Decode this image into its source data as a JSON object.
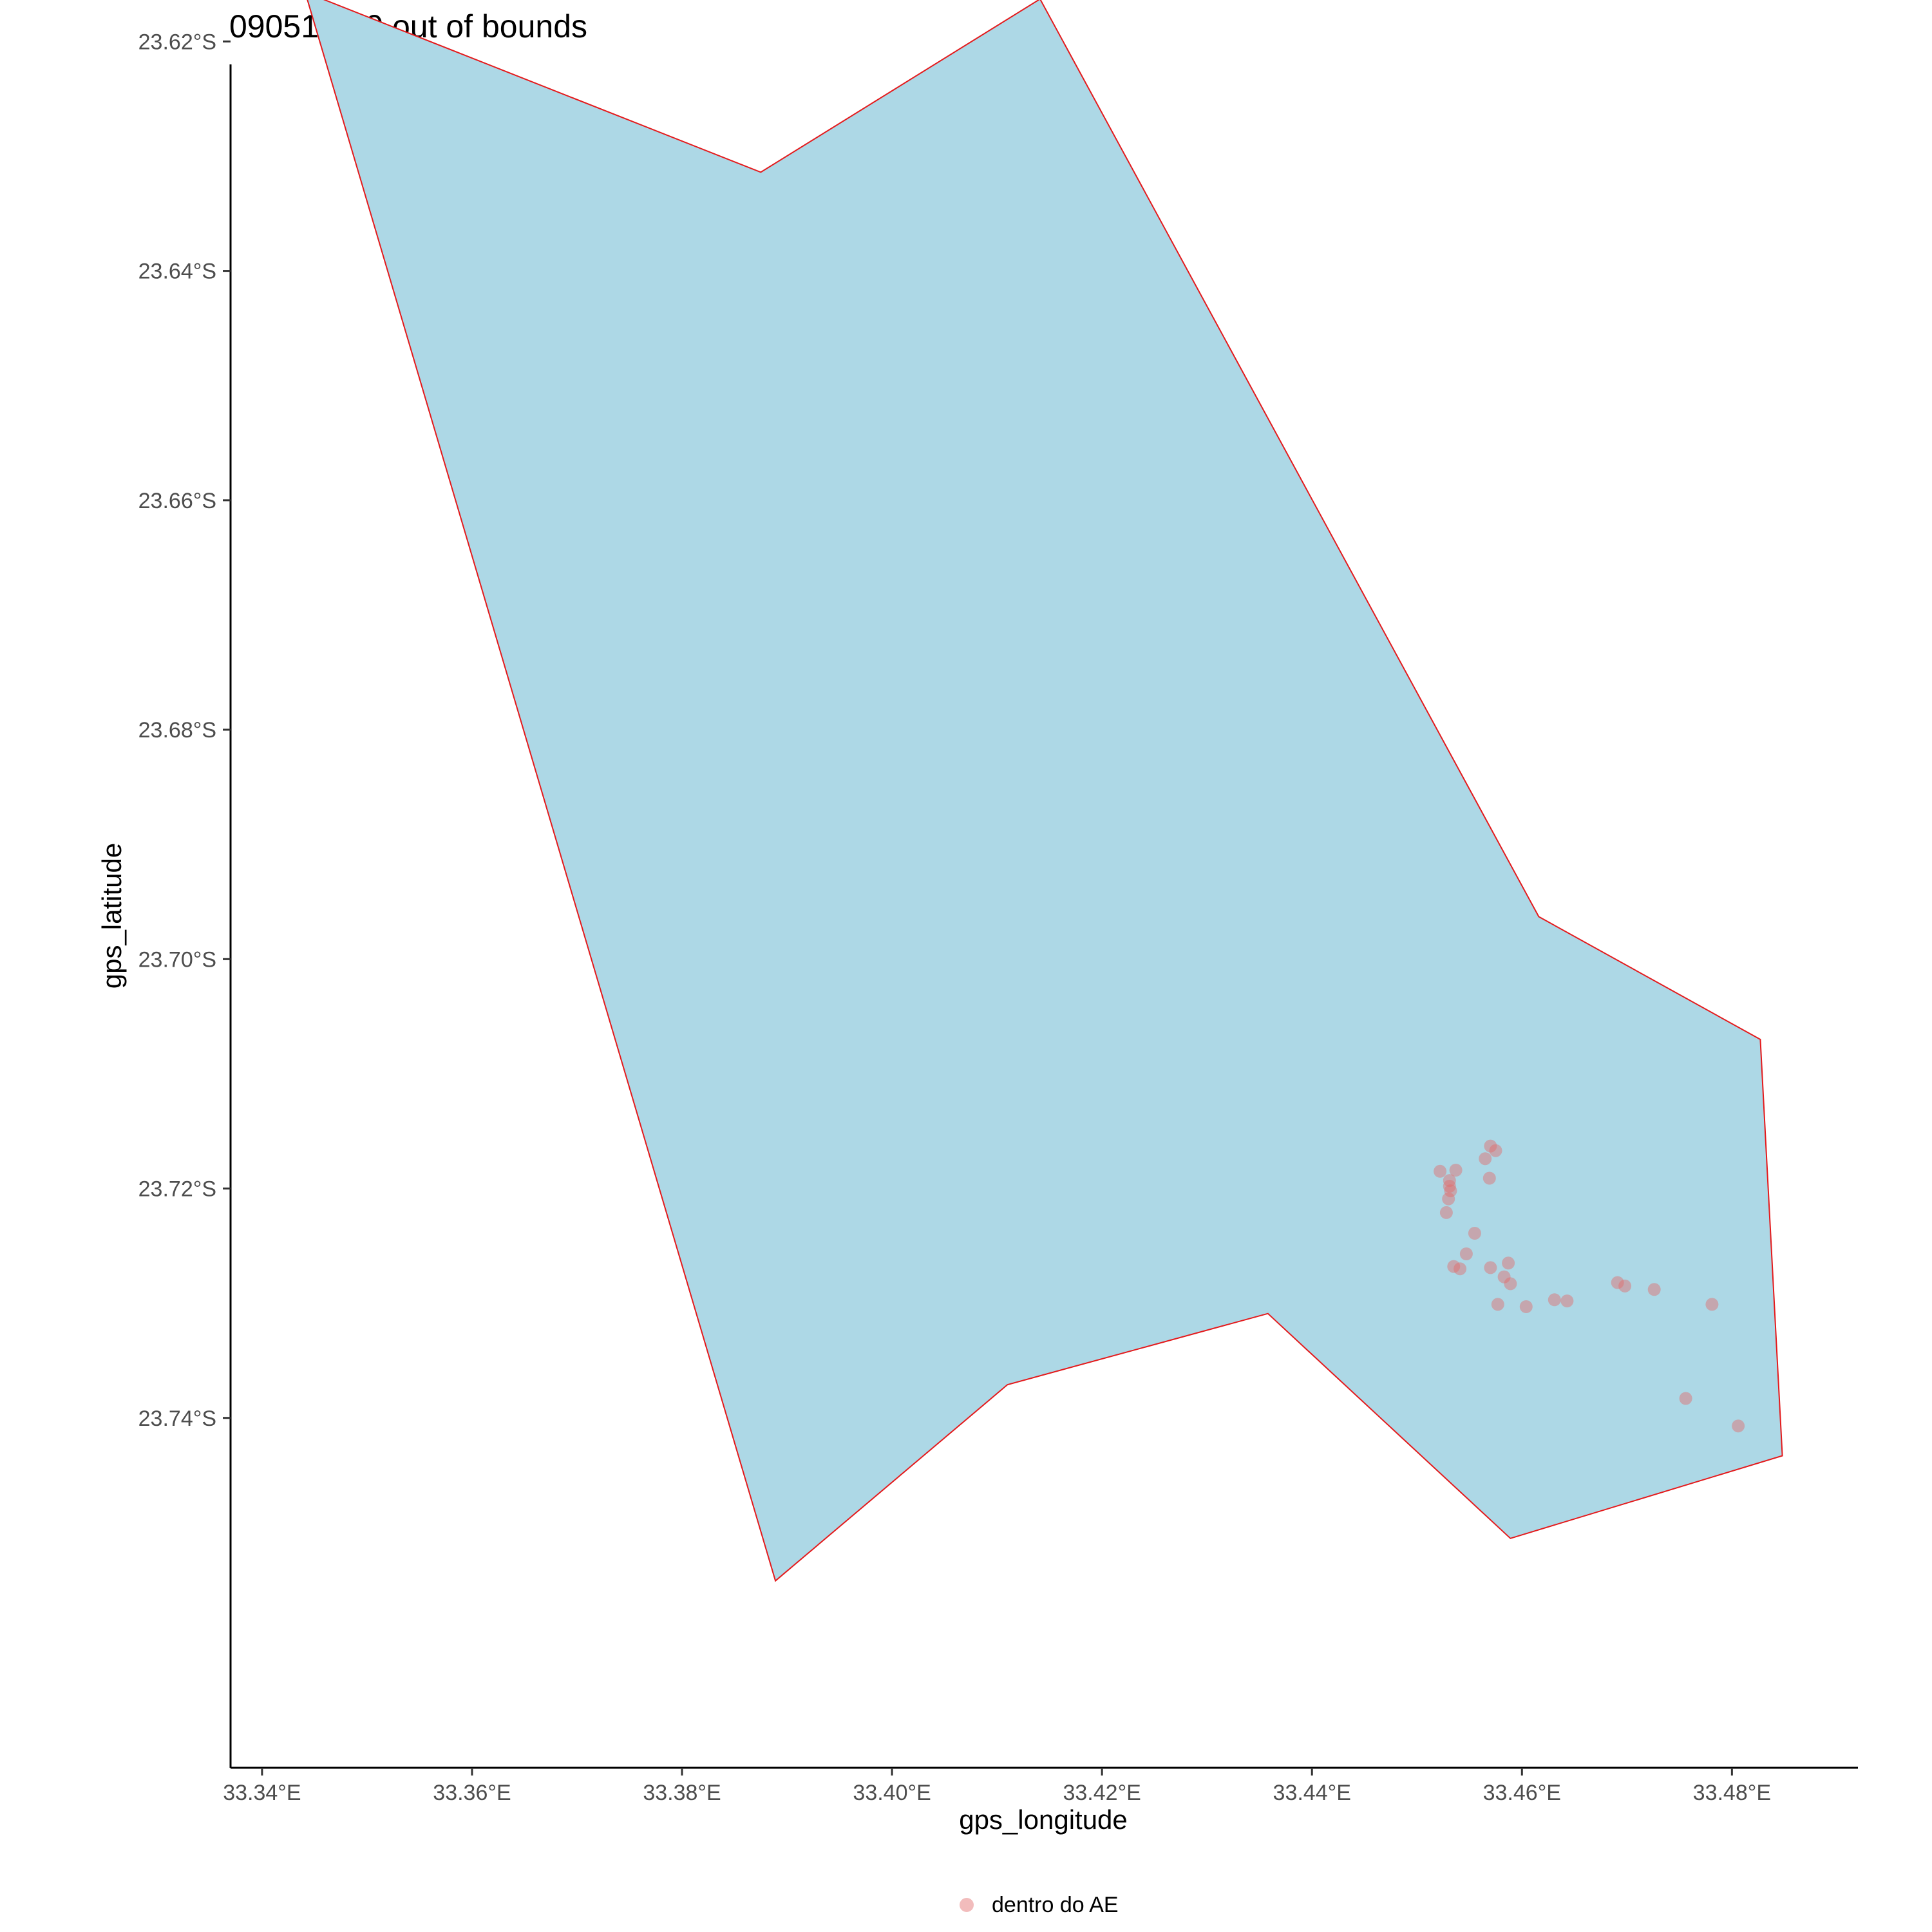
{
  "chart_data": {
    "type": "scatter",
    "title": "090519 - 0 out of bounds",
    "xlabel": "gps_longitude",
    "ylabel": "gps_latitude",
    "xlim": [
      33.337,
      33.492
    ],
    "ylim": [
      -23.7705,
      -23.622
    ],
    "x_ticks": [
      {
        "value": 33.34,
        "label": "33.34°E"
      },
      {
        "value": 33.36,
        "label": "33.36°E"
      },
      {
        "value": 33.38,
        "label": "33.38°E"
      },
      {
        "value": 33.4,
        "label": "33.40°E"
      },
      {
        "value": 33.42,
        "label": "33.42°E"
      },
      {
        "value": 33.44,
        "label": "33.44°E"
      },
      {
        "value": 33.46,
        "label": "33.46°E"
      },
      {
        "value": 33.48,
        "label": "33.48°E"
      }
    ],
    "y_ticks": [
      {
        "value": -23.62,
        "label": "23.62°S"
      },
      {
        "value": -23.64,
        "label": "23.64°S"
      },
      {
        "value": -23.66,
        "label": "23.66°S"
      },
      {
        "value": -23.68,
        "label": "23.68°S"
      },
      {
        "value": -23.7,
        "label": "23.70°S"
      },
      {
        "value": -23.72,
        "label": "23.72°S"
      },
      {
        "value": -23.74,
        "label": "23.74°S"
      }
    ],
    "grid": false,
    "legend_position": "bottom",
    "polygon": {
      "fill": "#add8e6",
      "stroke": "#e41a1c",
      "coords": [
        [
          33.3441,
          -23.6157
        ],
        [
          33.3875,
          -23.6314
        ],
        [
          33.4141,
          -23.6163
        ],
        [
          33.4616,
          -23.6963
        ],
        [
          33.4827,
          -23.707
        ],
        [
          33.4848,
          -23.7433
        ],
        [
          33.4589,
          -23.7505
        ],
        [
          33.4358,
          -23.7309
        ],
        [
          33.411,
          -23.7371
        ],
        [
          33.3889,
          -23.7542
        ]
      ]
    },
    "series": [
      {
        "name": "dentro do AE",
        "color": "#e36a6a",
        "opacity": 0.45,
        "points": [
          [
            33.457,
            -23.7163
          ],
          [
            33.4575,
            -23.7167
          ],
          [
            33.4565,
            -23.7174
          ],
          [
            33.4522,
            -23.7185
          ],
          [
            33.4537,
            -23.7184
          ],
          [
            33.4531,
            -23.7193
          ],
          [
            33.4531,
            -23.7198
          ],
          [
            33.4569,
            -23.7191
          ],
          [
            33.4532,
            -23.7202
          ],
          [
            33.453,
            -23.7209
          ],
          [
            33.4528,
            -23.7221
          ],
          [
            33.4555,
            -23.7239
          ],
          [
            33.4547,
            -23.7257
          ],
          [
            33.4535,
            -23.7268
          ],
          [
            33.4541,
            -23.727
          ],
          [
            33.457,
            -23.7269
          ],
          [
            33.4587,
            -23.7265
          ],
          [
            33.4583,
            -23.7277
          ],
          [
            33.4589,
            -23.7283
          ],
          [
            33.4577,
            -23.7301
          ],
          [
            33.4604,
            -23.7303
          ],
          [
            33.4631,
            -23.7297
          ],
          [
            33.4643,
            -23.7298
          ],
          [
            33.4691,
            -23.7282
          ],
          [
            33.4698,
            -23.7285
          ],
          [
            33.4726,
            -23.7288
          ],
          [
            33.4781,
            -23.7301
          ],
          [
            33.4756,
            -23.7383
          ],
          [
            33.4806,
            -23.7407
          ]
        ]
      }
    ]
  }
}
